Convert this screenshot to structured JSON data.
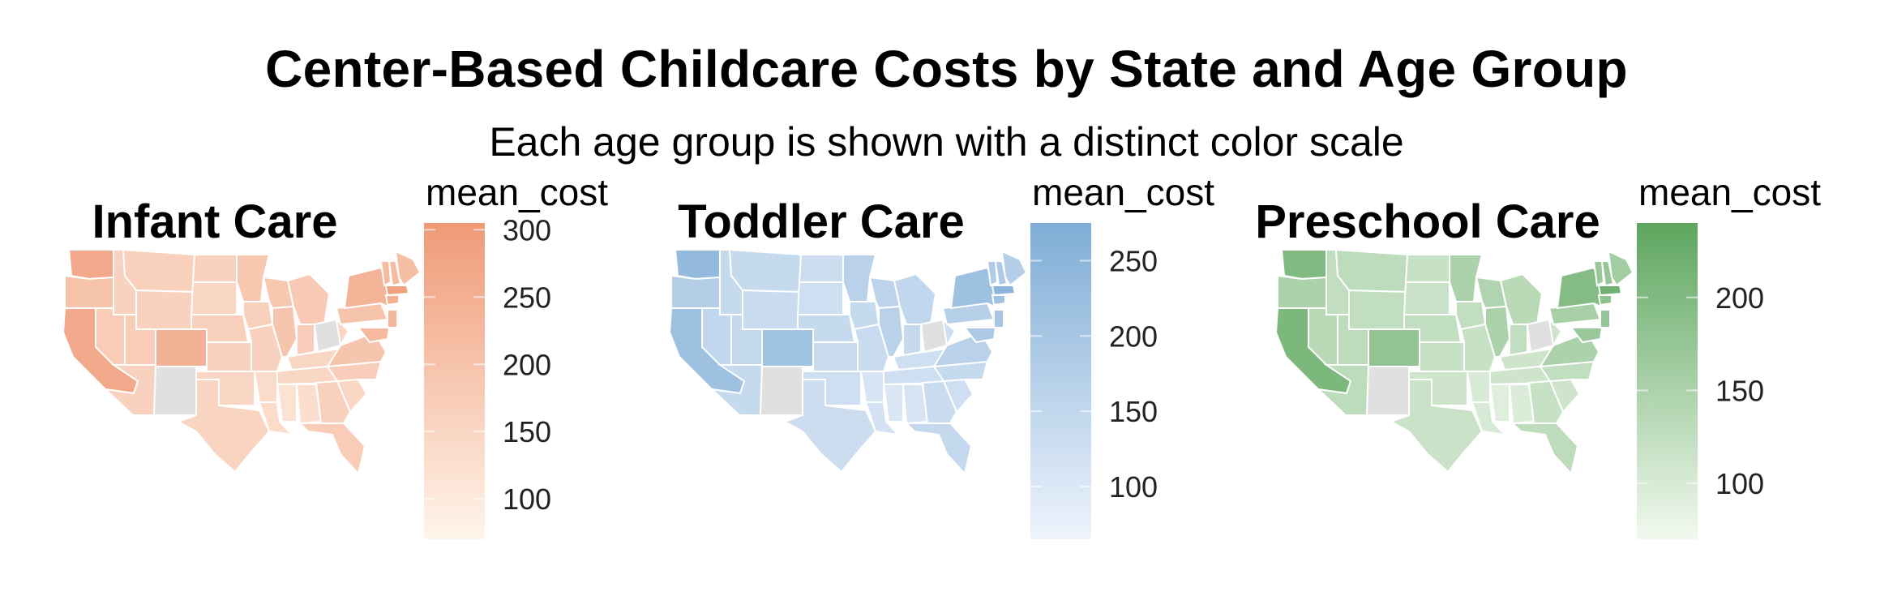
{
  "title": "Center-Based Childcare Costs by State and Age Group",
  "subtitle": "Each age group is shown with a distinct color scale",
  "chart_data": [
    {
      "type": "heatmap",
      "title": "Infant Care",
      "legend_title": "mean_cost",
      "color_low": "#fff5eb",
      "color_high": "#ef9a77",
      "no_data_color": "#e0e0e0",
      "range": [
        70,
        305
      ],
      "ticks": [
        100,
        150,
        200,
        250,
        300
      ],
      "state_values": {
        "WA": 265,
        "OR": 200,
        "CA": 265,
        "NV": 175,
        "ID": 160,
        "MT": 165,
        "WY": 160,
        "UT": 175,
        "AZ": 160,
        "CO": 245,
        "NM": null,
        "ND": 160,
        "SD": 150,
        "NE": 165,
        "KS": 160,
        "OK": 150,
        "TX": 155,
        "MN": 190,
        "IA": 165,
        "MO": 160,
        "AR": 135,
        "LA": 135,
        "WI": 190,
        "IL": 195,
        "MI": 180,
        "IN": 170,
        "OH": null,
        "KY": 150,
        "TN": 150,
        "MS": 120,
        "AL": 130,
        "GA": 165,
        "FL": 175,
        "SC": 150,
        "NC": 170,
        "VA": 195,
        "WV": 150,
        "PA": 200,
        "NY": 240,
        "VT": 220,
        "NH": 220,
        "ME": 210,
        "MA": 290,
        "CT": 250,
        "NJ": 230,
        "MD": 225
      }
    },
    {
      "type": "heatmap",
      "title": "Toddler Care",
      "legend_title": "mean_cost",
      "color_low": "#eef3fc",
      "color_high": "#7fadd6",
      "no_data_color": "#e0e0e0",
      "range": [
        65,
        275
      ],
      "ticks": [
        100,
        150,
        200,
        250
      ],
      "state_values": {
        "WA": 235,
        "OR": 175,
        "CA": 215,
        "NV": 150,
        "ID": 140,
        "MT": 140,
        "WY": 135,
        "UT": 145,
        "AZ": 140,
        "CO": 210,
        "NM": null,
        "ND": 130,
        "SD": 125,
        "NE": 140,
        "KS": 135,
        "OK": 125,
        "TX": 130,
        "MN": 165,
        "IA": 140,
        "MO": 135,
        "AR": 110,
        "LA": 115,
        "WI": 160,
        "IL": 165,
        "MI": 150,
        "IN": 140,
        "OH": null,
        "KY": 125,
        "TN": 125,
        "MS": 100,
        "AL": 110,
        "GA": 135,
        "FL": 145,
        "SC": 125,
        "NC": 140,
        "VA": 165,
        "WV": 125,
        "PA": 170,
        "NY": 215,
        "VT": 185,
        "NH": 190,
        "ME": 175,
        "MA": 250,
        "CT": 210,
        "NJ": 200,
        "MD": 190
      }
    },
    {
      "type": "heatmap",
      "title": "Preschool Care",
      "legend_title": "mean_cost",
      "color_low": "#f1f9ee",
      "color_high": "#5ea65f",
      "no_data_color": "#e0e0e0",
      "range": [
        70,
        240
      ],
      "ticks": [
        100,
        150,
        200
      ],
      "state_values": {
        "WA": 200,
        "OR": 150,
        "CA": 205,
        "NV": 135,
        "ID": 125,
        "MT": 130,
        "WY": 125,
        "UT": 130,
        "AZ": 130,
        "CO": 180,
        "NM": null,
        "ND": 120,
        "SD": 115,
        "NE": 125,
        "KS": 120,
        "OK": 110,
        "TX": 115,
        "MN": 150,
        "IA": 125,
        "MO": 120,
        "AR": 100,
        "LA": 100,
        "WI": 145,
        "IL": 150,
        "MI": 135,
        "IN": 125,
        "OH": null,
        "KY": 110,
        "TN": 110,
        "MS": 90,
        "AL": 95,
        "GA": 120,
        "FL": 130,
        "SC": 110,
        "NC": 125,
        "VA": 150,
        "WV": 110,
        "PA": 155,
        "NY": 195,
        "VT": 170,
        "NH": 175,
        "ME": 160,
        "MA": 220,
        "CT": 185,
        "NJ": 175,
        "MD": 170
      }
    }
  ]
}
